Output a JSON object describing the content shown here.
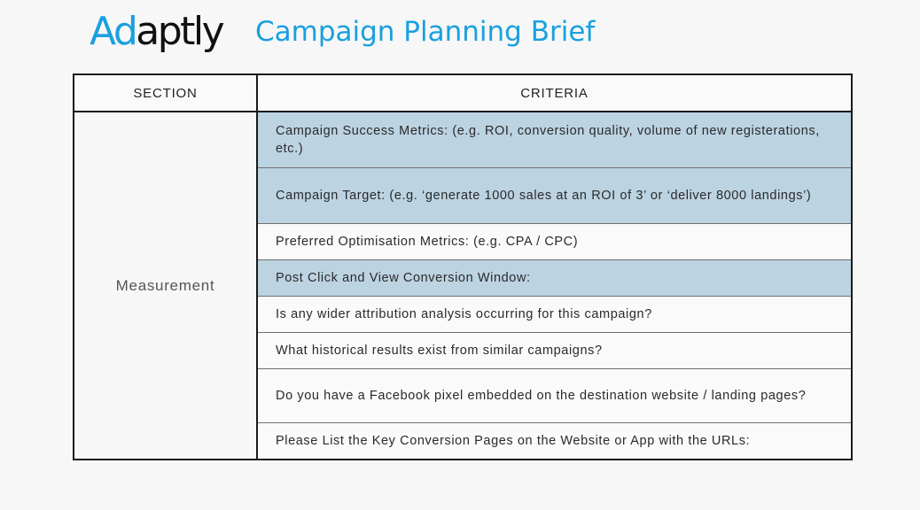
{
  "header": {
    "logo_part1": "Ad",
    "logo_part2": "aptly",
    "title": "Campaign Planning Brief"
  },
  "table": {
    "columns": [
      "SECTION",
      "CRITERIA"
    ],
    "section_label": "Measurement",
    "rows": [
      {
        "text": "Campaign Success Metrics: (e.g. ROI, conversion quality, volume of new registerations, etc.)",
        "highlighted": true
      },
      {
        "text": "Campaign Target: (e.g. ‘generate 1000 sales at an ROI of 3’ or ‘deliver 8000 landings’)",
        "highlighted": true
      },
      {
        "text": "Preferred Optimisation Metrics: (e.g. CPA / CPC)",
        "highlighted": false
      },
      {
        "text": "Post Click and View Conversion Window:",
        "highlighted": true
      },
      {
        "text": "Is any wider attribution analysis occurring for this campaign?",
        "highlighted": false
      },
      {
        "text": "What historical results exist from similar campaigns?",
        "highlighted": false
      },
      {
        "text": "Do you have a Facebook pixel embedded on the destination website / landing pages?",
        "highlighted": false
      },
      {
        "text": "Please List the Key Conversion Pages on the Website or App with the URLs:",
        "highlighted": false
      }
    ]
  },
  "colors": {
    "brand_blue": "#1aa0de",
    "highlight_row": "#bcd3e2",
    "border": "#1a1a1a"
  }
}
